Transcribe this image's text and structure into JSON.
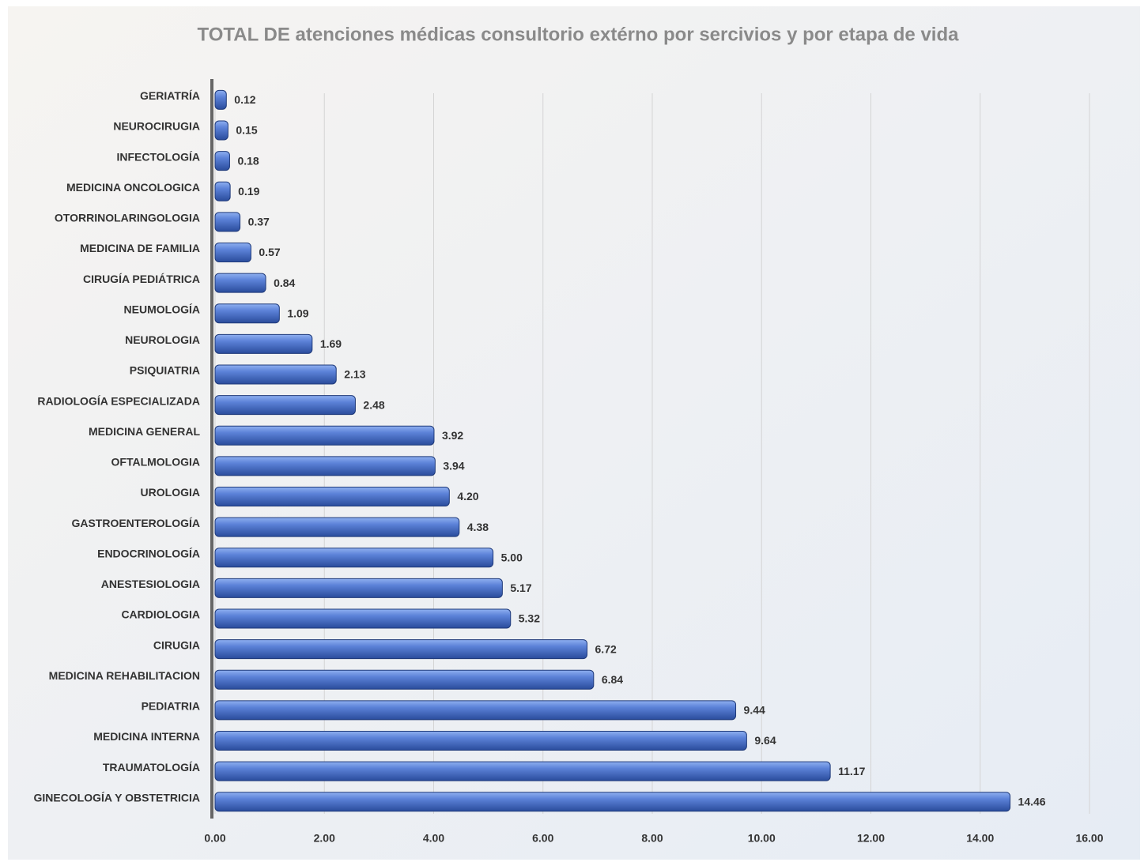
{
  "chart_data": {
    "type": "hbar",
    "title": "TOTAL DE atenciones médicas consultorio extérno por sercivios y por etapa de vida",
    "categories": [
      "GERIATRÍA",
      "NEUROCIRUGIA",
      "INFECTOLOGÍA",
      "MEDICINA ONCOLOGICA",
      "OTORRINOLARINGOLOGIA",
      "MEDICINA DE FAMILIA",
      "CIRUGÍA PEDIÁTRICA",
      "NEUMOLOGÍA",
      "NEUROLOGIA",
      "PSIQUIATRIA",
      "RADIOLOGÍA ESPECIALIZADA",
      "MEDICINA GENERAL",
      "OFTALMOLOGIA",
      "UROLOGIA",
      "GASTROENTEROLOGÍA",
      "ENDOCRINOLOGÍA",
      "ANESTESIOLOGIA",
      "CARDIOLOGIA",
      "CIRUGIA",
      "MEDICINA REHABILITACION",
      "PEDIATRIA",
      "MEDICINA INTERNA",
      "TRAUMATOLOGÍA",
      "GINECOLOGÍA Y OBSTETRICIA"
    ],
    "values": [
      0.12,
      0.15,
      0.18,
      0.19,
      0.37,
      0.57,
      0.84,
      1.09,
      1.69,
      2.13,
      2.48,
      3.92,
      3.94,
      4.2,
      4.38,
      5,
      5.17,
      5.32,
      6.72,
      6.84,
      9.44,
      9.64,
      11.17,
      14.46
    ],
    "value_labels": [
      "0.12",
      "0.15",
      "0.18",
      "0.19",
      "0.37",
      "0.57",
      "0.84",
      "1.09",
      "1.69",
      "2.13",
      "2.48",
      "3.92",
      "3.94",
      "4.20",
      "4.38",
      "5.00",
      "5.17",
      "5.32",
      "6.72",
      "6.84",
      "9.44",
      "9.64",
      "11.17",
      "14.46"
    ],
    "color": "#3f66c4",
    "xlim": [
      0,
      16
    ],
    "xticks": [
      {
        "value": 0,
        "label": "0.00"
      },
      {
        "value": 2,
        "label": "2.00"
      },
      {
        "value": 4,
        "label": "4.00"
      },
      {
        "value": 6,
        "label": "6.00"
      },
      {
        "value": 8,
        "label": "8.00"
      },
      {
        "value": 10,
        "label": "10.00"
      },
      {
        "value": 12,
        "label": "12.00"
      },
      {
        "value": 14,
        "label": "14.00"
      },
      {
        "value": 16,
        "label": "16.00"
      }
    ],
    "grid": true
  }
}
